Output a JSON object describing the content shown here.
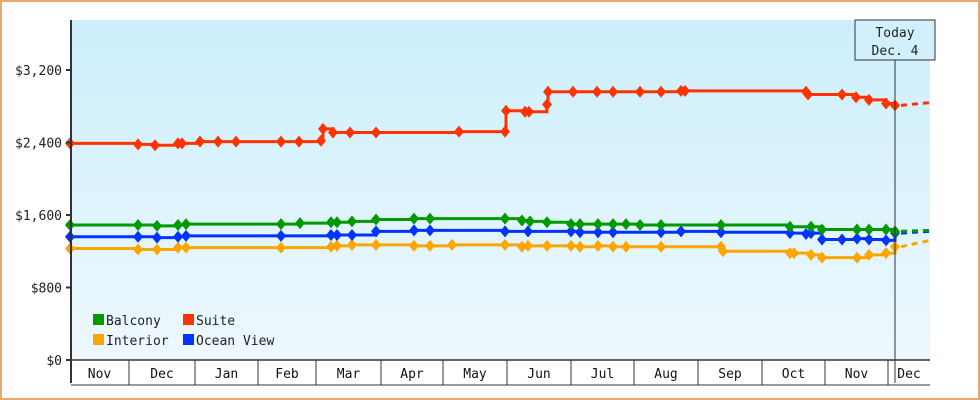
{
  "chart_data": {
    "type": "line",
    "title": "",
    "xlabel": "",
    "ylabel": "",
    "ylim": [
      0,
      3200
    ],
    "yticks": [
      {
        "value": 0,
        "label": "$0"
      },
      {
        "value": 800,
        "label": "$800"
      },
      {
        "value": 1600,
        "label": "$1,600"
      },
      {
        "value": 2400,
        "label": "$2,400"
      },
      {
        "value": 3200,
        "label": "$3,200"
      }
    ],
    "months": [
      {
        "label": "Nov",
        "x0": 70,
        "x1": 129
      },
      {
        "label": "Dec",
        "x0": 129,
        "x1": 195
      },
      {
        "label": "Jan",
        "x0": 195,
        "x1": 258
      },
      {
        "label": "Feb",
        "x0": 258,
        "x1": 316
      },
      {
        "label": "Mar",
        "x0": 316,
        "x1": 381
      },
      {
        "label": "Apr",
        "x0": 381,
        "x1": 443
      },
      {
        "label": "May",
        "x0": 443,
        "x1": 507
      },
      {
        "label": "Jun",
        "x0": 507,
        "x1": 571
      },
      {
        "label": "Jul",
        "x0": 571,
        "x1": 634
      },
      {
        "label": "Aug",
        "x0": 634,
        "x1": 698
      },
      {
        "label": "Sep",
        "x0": 698,
        "x1": 762
      },
      {
        "label": "Oct",
        "x0": 762,
        "x1": 825
      },
      {
        "label": "Nov",
        "x0": 825,
        "x1": 888
      },
      {
        "label": "Dec",
        "x0": 888,
        "x1": 930
      }
    ],
    "grid": false,
    "step_line": true,
    "legend": {
      "position": "lower-left",
      "entries": [
        {
          "name": "Balcony",
          "color": "#009900"
        },
        {
          "name": "Suite",
          "color": "#FF3300"
        },
        {
          "name": "Interior",
          "color": "#FFA500"
        },
        {
          "name": "Ocean View",
          "color": "#0033FF"
        }
      ]
    },
    "today_marker": {
      "line1": "Today",
      "line2": "Dec. 4",
      "x": 895
    },
    "series": [
      {
        "name": "Suite",
        "color": "#FF3300",
        "points": [
          [
            70,
            2390
          ],
          [
            138,
            2380
          ],
          [
            155,
            2370
          ],
          [
            178,
            2390
          ],
          [
            182,
            2390
          ],
          [
            200,
            2410
          ],
          [
            218,
            2410
          ],
          [
            236,
            2410
          ],
          [
            281,
            2410
          ],
          [
            299,
            2410
          ],
          [
            321,
            2420
          ],
          [
            323,
            2550
          ],
          [
            333,
            2510
          ],
          [
            350,
            2510
          ],
          [
            376,
            2510
          ],
          [
            459,
            2520
          ],
          [
            505,
            2520
          ],
          [
            506,
            2750
          ],
          [
            525,
            2740
          ],
          [
            529,
            2740
          ],
          [
            547,
            2820
          ],
          [
            548,
            2960
          ],
          [
            573,
            2960
          ],
          [
            597,
            2960
          ],
          [
            613,
            2960
          ],
          [
            640,
            2960
          ],
          [
            661,
            2960
          ],
          [
            681,
            2970
          ],
          [
            685,
            2970
          ],
          [
            806,
            2960
          ],
          [
            808,
            2930
          ],
          [
            842,
            2930
          ],
          [
            856,
            2900
          ],
          [
            869,
            2870
          ],
          [
            886,
            2830
          ],
          [
            895,
            2810
          ]
        ],
        "projection": [
          [
            895,
            2810
          ],
          [
            930,
            2840
          ]
        ]
      },
      {
        "name": "Balcony",
        "color": "#009900",
        "points": [
          [
            70,
            1490
          ],
          [
            138,
            1490
          ],
          [
            157,
            1480
          ],
          [
            178,
            1490
          ],
          [
            186,
            1500
          ],
          [
            281,
            1500
          ],
          [
            300,
            1510
          ],
          [
            331,
            1520
          ],
          [
            337,
            1520
          ],
          [
            352,
            1530
          ],
          [
            376,
            1550
          ],
          [
            414,
            1560
          ],
          [
            430,
            1560
          ],
          [
            505,
            1560
          ],
          [
            522,
            1540
          ],
          [
            530,
            1530
          ],
          [
            547,
            1520
          ],
          [
            571,
            1500
          ],
          [
            580,
            1500
          ],
          [
            598,
            1500
          ],
          [
            613,
            1500
          ],
          [
            626,
            1500
          ],
          [
            640,
            1490
          ],
          [
            661,
            1490
          ],
          [
            721,
            1490
          ],
          [
            790,
            1470
          ],
          [
            811,
            1470
          ],
          [
            822,
            1440
          ],
          [
            857,
            1440
          ],
          [
            869,
            1440
          ],
          [
            886,
            1440
          ],
          [
            895,
            1420
          ]
        ],
        "projection": [
          [
            895,
            1420
          ],
          [
            930,
            1430
          ]
        ]
      },
      {
        "name": "Ocean View",
        "color": "#0033FF",
        "points": [
          [
            70,
            1360
          ],
          [
            138,
            1360
          ],
          [
            157,
            1350
          ],
          [
            178,
            1360
          ],
          [
            186,
            1370
          ],
          [
            281,
            1370
          ],
          [
            331,
            1380
          ],
          [
            337,
            1380
          ],
          [
            352,
            1380
          ],
          [
            376,
            1420
          ],
          [
            414,
            1430
          ],
          [
            430,
            1430
          ],
          [
            505,
            1420
          ],
          [
            528,
            1420
          ],
          [
            571,
            1420
          ],
          [
            580,
            1410
          ],
          [
            598,
            1410
          ],
          [
            613,
            1410
          ],
          [
            661,
            1410
          ],
          [
            681,
            1420
          ],
          [
            721,
            1410
          ],
          [
            790,
            1400
          ],
          [
            806,
            1390
          ],
          [
            811,
            1400
          ],
          [
            822,
            1330
          ],
          [
            842,
            1330
          ],
          [
            857,
            1340
          ],
          [
            869,
            1330
          ],
          [
            886,
            1320
          ],
          [
            895,
            1400
          ]
        ],
        "projection": [
          [
            895,
            1400
          ],
          [
            930,
            1420
          ]
        ]
      },
      {
        "name": "Interior",
        "color": "#FFA500",
        "points": [
          [
            70,
            1230
          ],
          [
            138,
            1220
          ],
          [
            157,
            1220
          ],
          [
            178,
            1240
          ],
          [
            186,
            1240
          ],
          [
            281,
            1240
          ],
          [
            331,
            1250
          ],
          [
            337,
            1260
          ],
          [
            352,
            1270
          ],
          [
            376,
            1270
          ],
          [
            414,
            1260
          ],
          [
            430,
            1260
          ],
          [
            452,
            1270
          ],
          [
            505,
            1270
          ],
          [
            522,
            1250
          ],
          [
            528,
            1260
          ],
          [
            547,
            1260
          ],
          [
            571,
            1260
          ],
          [
            580,
            1250
          ],
          [
            598,
            1260
          ],
          [
            613,
            1250
          ],
          [
            626,
            1250
          ],
          [
            661,
            1250
          ],
          [
            721,
            1250
          ],
          [
            723,
            1200
          ],
          [
            790,
            1180
          ],
          [
            794,
            1180
          ],
          [
            811,
            1160
          ],
          [
            822,
            1130
          ],
          [
            857,
            1130
          ],
          [
            869,
            1160
          ],
          [
            886,
            1180
          ],
          [
            895,
            1250
          ]
        ],
        "projection": [
          [
            895,
            1250
          ],
          [
            930,
            1320
          ]
        ]
      }
    ]
  }
}
